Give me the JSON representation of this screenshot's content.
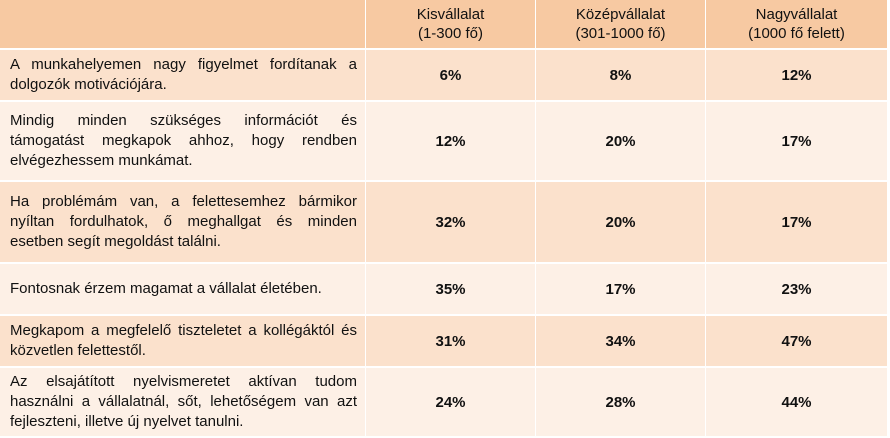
{
  "headers": [
    "",
    "Kisvállalat\n(1-300 fő)",
    "Középvállalat\n(301-1000 fő)",
    "Nagyvállalat\n(1000 fő felett)"
  ],
  "header_lines": [
    [
      "Kisvállalat",
      "(1-300 fő)"
    ],
    [
      "Középvállalat",
      "(301-1000 fő)"
    ],
    [
      "Nagyvállalat",
      "(1000 fő felett)"
    ]
  ],
  "rows": [
    {
      "label": "A munkahelyemen nagy figyelmet fordítanak a dolgozók motivációjára.",
      "values": [
        "6%",
        "8%",
        "12%"
      ]
    },
    {
      "label": "Mindig minden szükséges információt és támogatást megkapok ahhoz, hogy rendben elvégezhessem munkámat.",
      "values": [
        "12%",
        "20%",
        "17%"
      ]
    },
    {
      "label": "Ha problémám van, a felettesemhez bármikor nyíltan fordulhatok, ő meghallgat és minden esetben segít megoldást találni.",
      "values": [
        "32%",
        "20%",
        "17%"
      ]
    },
    {
      "label": "Fontosnak érzem magamat a vállalat életében.",
      "values": [
        "35%",
        "17%",
        "23%"
      ]
    },
    {
      "label": "Megkapom a megfelelő tiszteletet a kollégáktól és közvetlen felettestől.",
      "values": [
        "31%",
        "34%",
        "47%"
      ]
    },
    {
      "label": "Az elsajátított nyelvismeretet aktívan tudom használni a vállalatnál, sőt, lehetőségem van azt fejleszteni, illetve új nyelvet tanulni.",
      "values": [
        "24%",
        "28%",
        "44%"
      ]
    }
  ],
  "colors": {
    "header": "#f7c9a2",
    "row_odd": "#fbe1cc",
    "row_even": "#fdf0e6"
  }
}
